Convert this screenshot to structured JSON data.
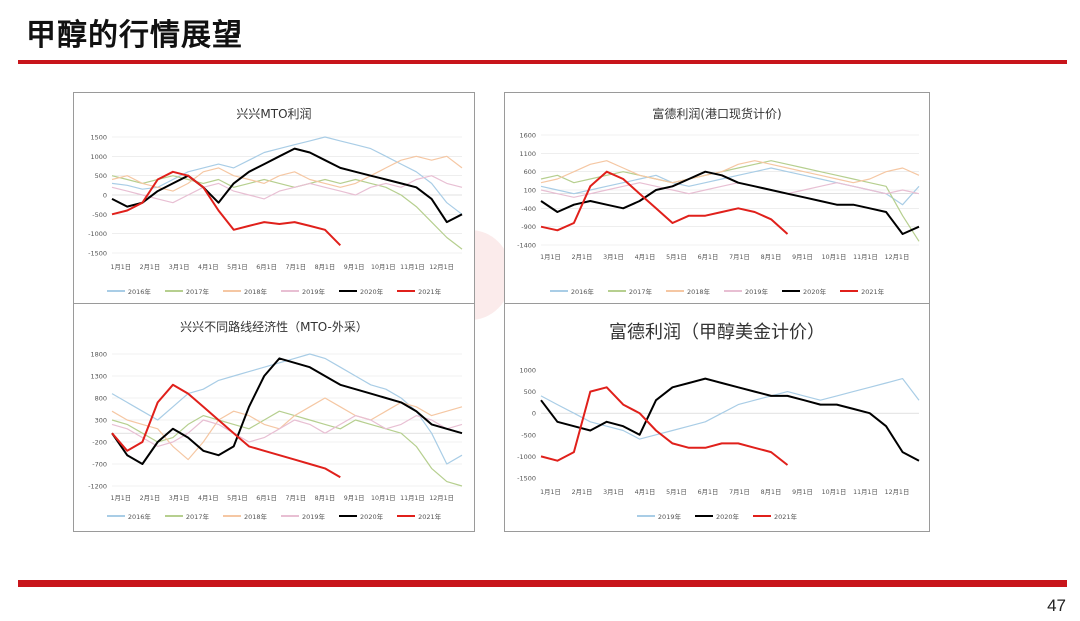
{
  "slide": {
    "title": "甲醇的行情展望",
    "page_number": "47"
  },
  "colors": {
    "accent": "#c8151b",
    "2016": "#a9cde6",
    "2017": "#b6cf8f",
    "2018": "#f5c7a3",
    "2019": "#e8bfd3",
    "2020": "#000000",
    "2021": "#e0201b"
  },
  "chart_data": [
    {
      "type": "line",
      "title": "兴兴MTO利润",
      "ylim": [
        -1500,
        1500
      ],
      "yticks": [
        1500,
        1000,
        500,
        0,
        -500,
        -1000,
        -1500
      ],
      "xticks": [
        "1月1日",
        "2月1日",
        "3月1日",
        "4月1日",
        "5月1日",
        "6月1日",
        "7月1日",
        "8月1日",
        "9月1日",
        "10月1日",
        "11月1日",
        "12月1日"
      ],
      "grid": "horizontal",
      "legend_position": "bottom",
      "series": [
        {
          "name": "2016年",
          "color": "#a9cde6",
          "values": [
            300,
            250,
            150,
            200,
            400,
            600,
            700,
            800,
            700,
            900,
            1100,
            1200,
            1300,
            1400,
            1500,
            1400,
            1300,
            1200,
            1000,
            800,
            600,
            300,
            -200,
            -500
          ]
        },
        {
          "name": "2017年",
          "color": "#b6cf8f",
          "values": [
            500,
            400,
            300,
            400,
            500,
            400,
            300,
            400,
            200,
            300,
            400,
            300,
            200,
            300,
            400,
            300,
            400,
            300,
            200,
            0,
            -300,
            -700,
            -1100,
            -1400
          ]
        },
        {
          "name": "2018年",
          "color": "#f5c7a3",
          "values": [
            400,
            500,
            300,
            200,
            100,
            300,
            600,
            700,
            500,
            400,
            300,
            500,
            600,
            400,
            300,
            200,
            300,
            500,
            700,
            900,
            1000,
            900,
            1000,
            700
          ]
        },
        {
          "name": "2019年",
          "color": "#e8bfd3",
          "values": [
            200,
            100,
            0,
            -100,
            -200,
            0,
            200,
            300,
            100,
            0,
            -100,
            100,
            200,
            300,
            200,
            100,
            0,
            200,
            300,
            200,
            400,
            500,
            300,
            200
          ]
        },
        {
          "name": "2020年",
          "color": "#000000",
          "values": [
            -100,
            -300,
            -200,
            100,
            300,
            500,
            200,
            -200,
            300,
            600,
            800,
            1000,
            1200,
            1100,
            900,
            700,
            600,
            500,
            400,
            300,
            200,
            -100,
            -700,
            -500
          ]
        },
        {
          "name": "2021年",
          "color": "#e0201b",
          "values": [
            -500,
            -400,
            -200,
            400,
            600,
            500,
            200,
            -400,
            -900,
            -800,
            -700,
            -750,
            -700,
            -800,
            -900,
            -1300
          ]
        }
      ]
    },
    {
      "type": "line",
      "title": "富德利润(港口现货计价)",
      "ylim": [
        -1400,
        1600
      ],
      "yticks": [
        1600,
        1100,
        600,
        100,
        -400,
        -900,
        -1400
      ],
      "xticks": [
        "1月1日",
        "2月1日",
        "3月1日",
        "4月1日",
        "5月1日",
        "6月1日",
        "7月1日",
        "8月1日",
        "9月1日",
        "10月1日",
        "11月1日",
        "12月1日"
      ],
      "grid": "horizontal",
      "legend_position": "bottom",
      "series": [
        {
          "name": "2016年",
          "color": "#a9cde6",
          "values": [
            200,
            100,
            0,
            100,
            200,
            300,
            400,
            500,
            300,
            200,
            300,
            400,
            500,
            600,
            700,
            600,
            500,
            400,
            300,
            200,
            100,
            0,
            -300,
            200
          ]
        },
        {
          "name": "2017年",
          "color": "#b6cf8f",
          "values": [
            400,
            500,
            300,
            400,
            500,
            600,
            500,
            400,
            300,
            400,
            500,
            600,
            700,
            800,
            900,
            800,
            700,
            600,
            500,
            400,
            300,
            200,
            -600,
            -1300
          ]
        },
        {
          "name": "2018年",
          "color": "#f5c7a3",
          "values": [
            300,
            400,
            600,
            800,
            900,
            700,
            500,
            400,
            300,
            400,
            500,
            600,
            800,
            900,
            800,
            700,
            600,
            500,
            400,
            300,
            400,
            600,
            700,
            500
          ]
        },
        {
          "name": "2019年",
          "color": "#e8bfd3",
          "values": [
            100,
            0,
            -100,
            0,
            100,
            200,
            300,
            200,
            100,
            0,
            100,
            200,
            300,
            200,
            100,
            0,
            100,
            200,
            300,
            200,
            100,
            0,
            100,
            0
          ]
        },
        {
          "name": "2020年",
          "color": "#000000",
          "values": [
            -200,
            -500,
            -300,
            -200,
            -300,
            -400,
            -200,
            100,
            200,
            400,
            600,
            500,
            300,
            200,
            100,
            0,
            -100,
            -200,
            -300,
            -300,
            -400,
            -500,
            -1100,
            -900
          ]
        },
        {
          "name": "2021年",
          "color": "#e0201b",
          "values": [
            -900,
            -1000,
            -800,
            200,
            600,
            400,
            0,
            -400,
            -800,
            -600,
            -600,
            -500,
            -400,
            -500,
            -700,
            -1100
          ]
        }
      ]
    },
    {
      "type": "line",
      "title": "兴兴不同路线经济性（MTO-外采）",
      "ylim": [
        -1200,
        1800
      ],
      "yticks": [
        1800,
        1300,
        800,
        300,
        -200,
        -700,
        -1200
      ],
      "xticks": [
        "1月1日",
        "2月1日",
        "3月1日",
        "4月1日",
        "5月1日",
        "6月1日",
        "7月1日",
        "8月1日",
        "9月1日",
        "10月1日",
        "11月1日",
        "12月1日"
      ],
      "grid": "horizontal",
      "legend_position": "bottom",
      "series": [
        {
          "name": "2016年",
          "color": "#a9cde6",
          "values": [
            900,
            700,
            500,
            300,
            600,
            900,
            1000,
            1200,
            1300,
            1400,
            1500,
            1600,
            1700,
            1800,
            1700,
            1500,
            1300,
            1100,
            1000,
            800,
            500,
            0,
            -700,
            -500
          ]
        },
        {
          "name": "2017年",
          "color": "#b6cf8f",
          "values": [
            300,
            200,
            0,
            -200,
            -100,
            200,
            400,
            300,
            200,
            100,
            300,
            500,
            400,
            300,
            200,
            100,
            300,
            200,
            100,
            0,
            -300,
            -800,
            -1100,
            -1200
          ]
        },
        {
          "name": "2018年",
          "color": "#f5c7a3",
          "values": [
            500,
            300,
            200,
            100,
            -300,
            -600,
            -200,
            300,
            500,
            400,
            200,
            100,
            400,
            600,
            800,
            600,
            400,
            300,
            500,
            700,
            600,
            400,
            500,
            600
          ]
        },
        {
          "name": "2019年",
          "color": "#e8bfd3",
          "values": [
            200,
            100,
            -100,
            -300,
            -200,
            0,
            300,
            200,
            0,
            -200,
            -100,
            100,
            300,
            200,
            0,
            200,
            400,
            300,
            100,
            200,
            400,
            300,
            100,
            200
          ]
        },
        {
          "name": "2020年",
          "color": "#000000",
          "values": [
            0,
            -500,
            -700,
            -200,
            100,
            -100,
            -400,
            -500,
            -300,
            600,
            1300,
            1700,
            1600,
            1500,
            1300,
            1100,
            1000,
            900,
            800,
            700,
            500,
            200,
            100,
            0
          ]
        },
        {
          "name": "2021年",
          "color": "#e0201b",
          "values": [
            0,
            -400,
            -200,
            700,
            1100,
            900,
            600,
            300,
            0,
            -300,
            -400,
            -500,
            -600,
            -700,
            -800,
            -1000
          ]
        }
      ]
    },
    {
      "type": "line",
      "title": "富德利润（甲醇美金计价）",
      "ylim": [
        -1500,
        1000
      ],
      "yticks": [
        1000,
        500,
        0,
        -500,
        -1000,
        -1500
      ],
      "xticks": [
        "1月1日",
        "2月1日",
        "3月1日",
        "4月1日",
        "5月1日",
        "6月1日",
        "7月1日",
        "8月1日",
        "9月1日",
        "10月1日",
        "11月1日",
        "12月1日"
      ],
      "grid": "none",
      "legend_position": "bottom",
      "series": [
        {
          "name": "2019年",
          "color": "#a9cde6",
          "values": [
            400,
            200,
            0,
            -200,
            -300,
            -400,
            -600,
            -500,
            -400,
            -300,
            -200,
            0,
            200,
            300,
            400,
            500,
            400,
            300,
            400,
            500,
            600,
            700,
            800,
            300
          ]
        },
        {
          "name": "2020年",
          "color": "#000000",
          "values": [
            300,
            -200,
            -300,
            -400,
            -200,
            -300,
            -500,
            300,
            600,
            700,
            800,
            700,
            600,
            500,
            400,
            400,
            300,
            200,
            200,
            100,
            0,
            -300,
            -900,
            -1100
          ]
        },
        {
          "name": "2021年",
          "color": "#e0201b",
          "values": [
            -1000,
            -1100,
            -900,
            500,
            600,
            200,
            0,
            -400,
            -700,
            -800,
            -800,
            -700,
            -700,
            -800,
            -900,
            -1200
          ]
        }
      ]
    }
  ]
}
